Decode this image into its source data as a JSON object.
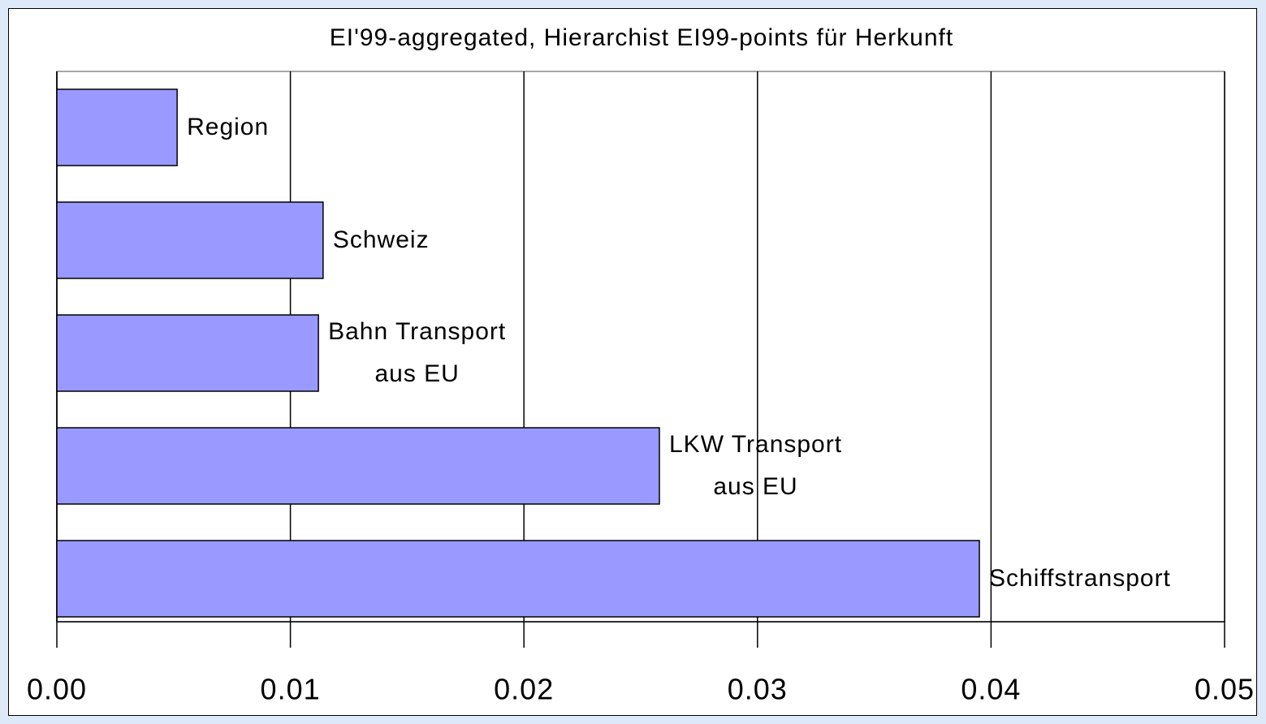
{
  "chart_data": {
    "type": "barh",
    "title": "EI'99-aggregated, Hierarchist EI99-points für Herkunft",
    "categories": [
      "Region",
      "Schweiz",
      "Bahn Transport\naus EU",
      "LKW Transport\naus EU",
      "Schiffstransport"
    ],
    "values": [
      0.00515,
      0.0114,
      0.0112,
      0.0258,
      0.0395
    ],
    "color": "#9999ff",
    "xlim": [
      0,
      0.05
    ],
    "xticks": [
      {
        "value": 0,
        "label": "0.00"
      },
      {
        "value": 0.01,
        "label": "0.01"
      },
      {
        "value": 0.02,
        "label": "0.02"
      },
      {
        "value": 0.03,
        "label": "0.03"
      },
      {
        "value": 0.04,
        "label": "0.04"
      },
      {
        "value": 0.05,
        "label": "0.05"
      }
    ],
    "grid": true
  }
}
